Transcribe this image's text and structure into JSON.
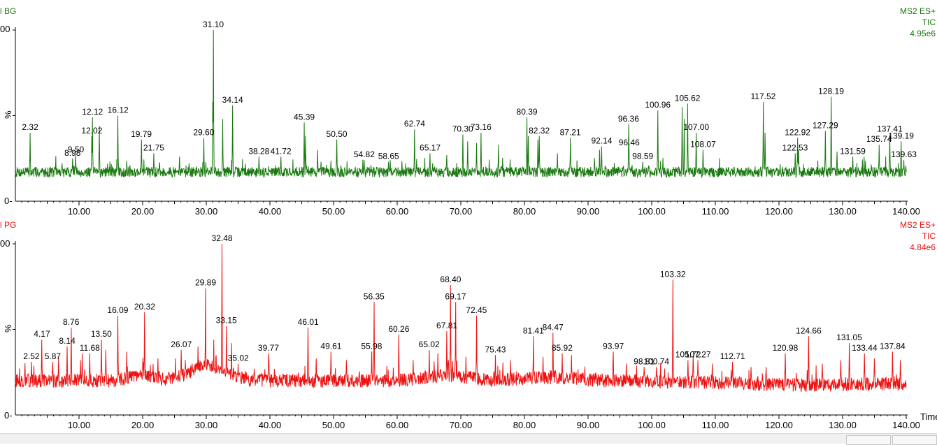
{
  "chart_data": [
    {
      "type": "line",
      "title": "l BG",
      "header_right": [
        "MS2 ES+",
        "TIC",
        "4.95e6"
      ],
      "color": "#1a7a10",
      "ylabel": "%",
      "yticks": [
        "00",
        "0-"
      ],
      "xlim": [
        0,
        140
      ],
      "ylim": [
        0,
        100
      ],
      "xticks": [
        "10.00",
        "20.00",
        "30.00",
        "40.00",
        "50.00",
        "60.00",
        "70.00",
        "80.00",
        "90.00",
        "100.00",
        "110.00",
        "120.00",
        "130.00",
        "140.00"
      ],
      "baseline": 17,
      "noise": 3,
      "seed": 7,
      "peaks": [
        {
          "x": 2.32,
          "y": 40,
          "label": "2.32"
        },
        {
          "x": 8.98,
          "y": 25,
          "label": "8.98"
        },
        {
          "x": 9.5,
          "y": 27,
          "label": "9.50"
        },
        {
          "x": 12.02,
          "y": 38,
          "label": "12.02"
        },
        {
          "x": 12.12,
          "y": 49,
          "label": "12.12"
        },
        {
          "x": 16.12,
          "y": 50,
          "label": "16.12"
        },
        {
          "x": 19.79,
          "y": 36,
          "label": "19.79"
        },
        {
          "x": 21.75,
          "y": 28,
          "label": "21.75"
        },
        {
          "x": 29.6,
          "y": 37,
          "label": "29.60"
        },
        {
          "x": 31.1,
          "y": 100,
          "label": "31.10"
        },
        {
          "x": 34.14,
          "y": 56,
          "label": "34.14"
        },
        {
          "x": 38.28,
          "y": 26,
          "label": "38.28"
        },
        {
          "x": 41.72,
          "y": 26,
          "label": "41.72"
        },
        {
          "x": 45.39,
          "y": 46,
          "label": "45.39"
        },
        {
          "x": 50.5,
          "y": 36,
          "label": "50.50"
        },
        {
          "x": 54.82,
          "y": 24,
          "label": "54.82"
        },
        {
          "x": 58.65,
          "y": 23,
          "label": "58.65"
        },
        {
          "x": 62.74,
          "y": 42,
          "label": "62.74"
        },
        {
          "x": 65.17,
          "y": 28,
          "label": "65.17"
        },
        {
          "x": 70.3,
          "y": 39,
          "label": "70.30"
        },
        {
          "x": 73.16,
          "y": 40,
          "label": "73.16"
        },
        {
          "x": 80.39,
          "y": 49,
          "label": "80.39"
        },
        {
          "x": 82.32,
          "y": 38,
          "label": "82.32"
        },
        {
          "x": 87.21,
          "y": 37,
          "label": "87.21"
        },
        {
          "x": 92.14,
          "y": 32,
          "label": "92.14"
        },
        {
          "x": 96.36,
          "y": 45,
          "label": "96.36"
        },
        {
          "x": 96.46,
          "y": 31,
          "label": "96.46"
        },
        {
          "x": 98.59,
          "y": 23,
          "label": "98.59"
        },
        {
          "x": 100.96,
          "y": 53,
          "label": "100.96"
        },
        {
          "x": 105.62,
          "y": 57,
          "label": "105.62"
        },
        {
          "x": 107.0,
          "y": 40,
          "label": "107.00"
        },
        {
          "x": 108.07,
          "y": 30,
          "label": "108.07"
        },
        {
          "x": 117.52,
          "y": 58,
          "label": "117.52"
        },
        {
          "x": 122.92,
          "y": 37,
          "label": "122.92"
        },
        {
          "x": 122.53,
          "y": 28,
          "label": "122.53"
        },
        {
          "x": 127.29,
          "y": 41,
          "label": "127.29"
        },
        {
          "x": 128.19,
          "y": 61,
          "label": "128.19"
        },
        {
          "x": 131.59,
          "y": 26,
          "label": "131.59"
        },
        {
          "x": 135.74,
          "y": 33,
          "label": "135.74"
        },
        {
          "x": 137.41,
          "y": 39,
          "label": "137.41"
        },
        {
          "x": 139.19,
          "y": 35,
          "label": "139.19"
        },
        {
          "x": 139.63,
          "y": 24,
          "label": "139.63"
        }
      ],
      "minor_peaks": [
        {
          "x": 13.2,
          "y": 44
        },
        {
          "x": 31.0,
          "y": 58
        },
        {
          "x": 32.6,
          "y": 48
        },
        {
          "x": 45.6,
          "y": 38
        },
        {
          "x": 47.5,
          "y": 30
        },
        {
          "x": 71.1,
          "y": 35
        },
        {
          "x": 72.5,
          "y": 34
        },
        {
          "x": 75.9,
          "y": 33
        },
        {
          "x": 80.6,
          "y": 38
        },
        {
          "x": 82.1,
          "y": 36
        },
        {
          "x": 85.2,
          "y": 28
        },
        {
          "x": 91.8,
          "y": 30
        },
        {
          "x": 104.8,
          "y": 55
        },
        {
          "x": 105.1,
          "y": 48
        },
        {
          "x": 117.8,
          "y": 40
        },
        {
          "x": 123.1,
          "y": 30
        },
        {
          "x": 129.1,
          "y": 29
        },
        {
          "x": 133.4,
          "y": 26
        },
        {
          "x": 25.8,
          "y": 26
        },
        {
          "x": 67.8,
          "y": 27
        }
      ]
    },
    {
      "type": "line",
      "title": "l PG",
      "header_right": [
        "MS2 ES+",
        "TIC",
        "4.84e6"
      ],
      "color": "#ee1111",
      "ylabel": "%",
      "yticks": [
        "00",
        "0-"
      ],
      "xlim": [
        0,
        140
      ],
      "ylim": [
        0,
        100
      ],
      "xlabel": "Time",
      "xticks": [
        "10.00",
        "20.00",
        "30.00",
        "40.00",
        "50.00",
        "60.00",
        "70.00",
        "80.00",
        "90.00",
        "100.00",
        "110.00",
        "120.00",
        "130.00",
        "140.00"
      ],
      "baseline": 20,
      "noise": 4,
      "seed": 13,
      "peaks": [
        {
          "x": 2.52,
          "y": 31,
          "label": "2.52"
        },
        {
          "x": 4.17,
          "y": 44,
          "label": "4.17"
        },
        {
          "x": 5.87,
          "y": 31,
          "label": "5.87"
        },
        {
          "x": 8.14,
          "y": 40,
          "label": "8.14"
        },
        {
          "x": 8.76,
          "y": 51,
          "label": "8.76"
        },
        {
          "x": 11.68,
          "y": 36,
          "label": "11.68"
        },
        {
          "x": 13.5,
          "y": 44,
          "label": "13.50"
        },
        {
          "x": 16.09,
          "y": 58,
          "label": "16.09"
        },
        {
          "x": 20.32,
          "y": 60,
          "label": "20.32"
        },
        {
          "x": 26.07,
          "y": 38,
          "label": "26.07"
        },
        {
          "x": 29.89,
          "y": 74,
          "label": "29.89"
        },
        {
          "x": 32.48,
          "y": 100,
          "label": "32.48"
        },
        {
          "x": 33.15,
          "y": 52,
          "label": "33.15"
        },
        {
          "x": 35.02,
          "y": 30,
          "label": "35.02"
        },
        {
          "x": 39.77,
          "y": 36,
          "label": "39.77"
        },
        {
          "x": 46.01,
          "y": 51,
          "label": "46.01"
        },
        {
          "x": 49.61,
          "y": 37,
          "label": "49.61"
        },
        {
          "x": 55.98,
          "y": 37,
          "label": "55.98"
        },
        {
          "x": 56.35,
          "y": 66,
          "label": "56.35"
        },
        {
          "x": 60.26,
          "y": 47,
          "label": "60.26"
        },
        {
          "x": 65.02,
          "y": 38,
          "label": "65.02"
        },
        {
          "x": 67.81,
          "y": 49,
          "label": "67.81"
        },
        {
          "x": 68.4,
          "y": 76,
          "label": "68.40"
        },
        {
          "x": 69.17,
          "y": 66,
          "label": "69.17"
        },
        {
          "x": 72.45,
          "y": 58,
          "label": "72.45"
        },
        {
          "x": 75.43,
          "y": 35,
          "label": "75.43"
        },
        {
          "x": 81.41,
          "y": 46,
          "label": "81.41"
        },
        {
          "x": 84.47,
          "y": 48,
          "label": "84.47"
        },
        {
          "x": 85.92,
          "y": 36,
          "label": "85.92"
        },
        {
          "x": 93.97,
          "y": 37,
          "label": "93.97"
        },
        {
          "x": 98.81,
          "y": 28,
          "label": "98.81"
        },
        {
          "x": 100.74,
          "y": 28,
          "label": "100.74"
        },
        {
          "x": 103.32,
          "y": 79,
          "label": "103.32"
        },
        {
          "x": 105.72,
          "y": 32,
          "label": "105.72"
        },
        {
          "x": 107.27,
          "y": 32,
          "label": "107.27"
        },
        {
          "x": 112.71,
          "y": 31,
          "label": "112.71"
        },
        {
          "x": 120.98,
          "y": 36,
          "label": "120.98"
        },
        {
          "x": 124.66,
          "y": 46,
          "label": "124.66"
        },
        {
          "x": 131.05,
          "y": 42,
          "label": "131.05"
        },
        {
          "x": 133.44,
          "y": 36,
          "label": "133.44"
        },
        {
          "x": 137.84,
          "y": 37,
          "label": "137.84"
        }
      ],
      "minor_peaks": [
        {
          "x": 1.5,
          "y": 30
        },
        {
          "x": 6.8,
          "y": 33
        },
        {
          "x": 10.5,
          "y": 36
        },
        {
          "x": 14.2,
          "y": 38
        },
        {
          "x": 17.5,
          "y": 37
        },
        {
          "x": 22.4,
          "y": 33
        },
        {
          "x": 28.7,
          "y": 40
        },
        {
          "x": 31.2,
          "y": 44
        },
        {
          "x": 34.0,
          "y": 42
        },
        {
          "x": 47.3,
          "y": 33
        },
        {
          "x": 52.0,
          "y": 32
        },
        {
          "x": 62.5,
          "y": 32
        },
        {
          "x": 66.4,
          "y": 36
        },
        {
          "x": 70.8,
          "y": 34
        },
        {
          "x": 77.8,
          "y": 32
        },
        {
          "x": 82.9,
          "y": 34
        },
        {
          "x": 87.4,
          "y": 35
        },
        {
          "x": 96.0,
          "y": 30
        },
        {
          "x": 106.5,
          "y": 34
        },
        {
          "x": 109.5,
          "y": 30
        },
        {
          "x": 118.0,
          "y": 28
        },
        {
          "x": 126.8,
          "y": 30
        },
        {
          "x": 129.7,
          "y": 32
        },
        {
          "x": 135.0,
          "y": 33
        },
        {
          "x": 139.1,
          "y": 32
        },
        {
          "x": 115.6,
          "y": 28
        }
      ]
    }
  ]
}
